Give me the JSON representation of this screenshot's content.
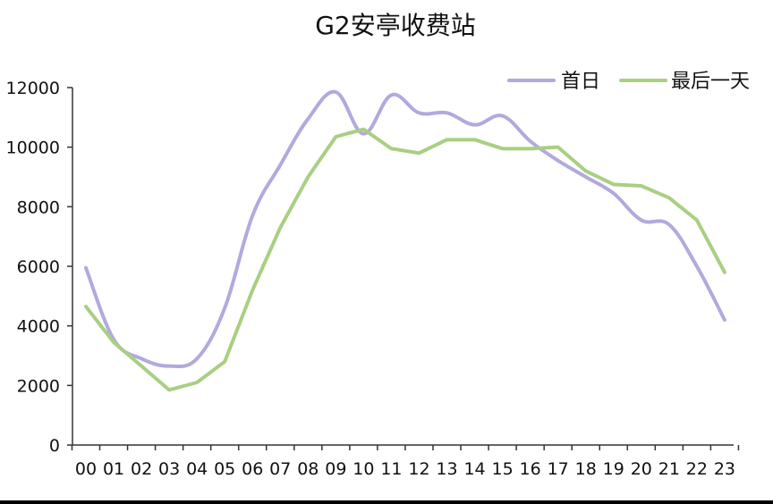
{
  "chart_data": {
    "type": "line",
    "title": "G2安亭收费站",
    "xlabel": "",
    "ylabel": "",
    "categories": [
      "00",
      "01",
      "02",
      "03",
      "04",
      "05",
      "06",
      "07",
      "08",
      "09",
      "10",
      "11",
      "12",
      "13",
      "14",
      "15",
      "16",
      "17",
      "18",
      "19",
      "20",
      "21",
      "22",
      "23"
    ],
    "ylim": [
      0,
      12000
    ],
    "yticks": [
      0,
      2000,
      4000,
      6000,
      8000,
      10000,
      12000
    ],
    "ytick_labels": [
      "0",
      "2000",
      "4000",
      "6000",
      "8000",
      "10000",
      "12000"
    ],
    "grid": false,
    "legend_position": "top-right",
    "series": [
      {
        "name": "首日",
        "color": "#b2a9de",
        "values": [
          5950,
          3550,
          2900,
          2650,
          2900,
          4600,
          7700,
          9400,
          10950,
          11850,
          10450,
          11750,
          11150,
          11150,
          10750,
          11050,
          10200,
          9550,
          9000,
          8450,
          7550,
          7400,
          6000,
          4200
        ]
      },
      {
        "name": "最后一天",
        "color": "#a9cf82",
        "values": [
          4650,
          3450,
          2650,
          1850,
          2100,
          2800,
          5200,
          7300,
          9000,
          10350,
          10600,
          9950,
          9800,
          10250,
          10250,
          9950,
          9950,
          10000,
          9200,
          8750,
          8700,
          8300,
          7550,
          5800
        ]
      }
    ]
  }
}
